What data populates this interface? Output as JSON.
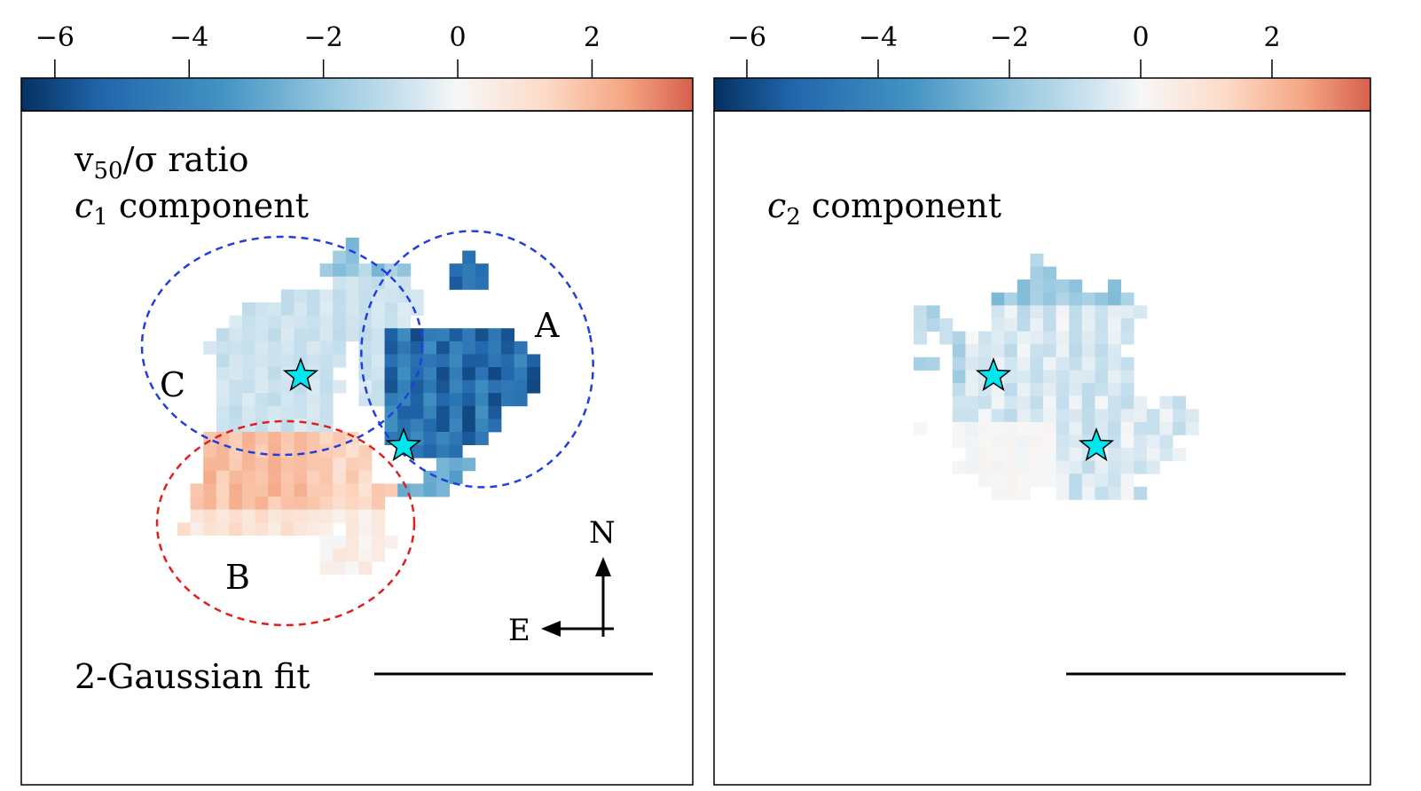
{
  "chart_data": [
    {
      "type": "heatmap",
      "panel": "left",
      "title_line1_main": "v",
      "title_line1_sub": "50",
      "title_line1_rest": "/σ ratio",
      "title_line2_main": "c",
      "title_line2_sub": "1",
      "title_line2_rest": " component",
      "fit_label": "2-Gaussian fit",
      "colorbar": {
        "cmap": "RdBu_r",
        "vmin": -6.5,
        "vmax": 3.5,
        "ticks": [
          -6,
          -4,
          -2,
          0,
          2
        ],
        "tick_labels": [
          "−6",
          "−4",
          "−2",
          "0",
          "2"
        ]
      },
      "regions": [
        {
          "label": "A",
          "color": "#1f3fe0"
        },
        {
          "label": "B",
          "color": "#e01f1f"
        },
        {
          "label": "C",
          "color": "#1f3fe0"
        }
      ],
      "markers": [
        {
          "name": "star-1",
          "color": "#00e5ee"
        },
        {
          "name": "star-2",
          "color": "#00e5ee"
        }
      ],
      "compass": {
        "north": "N",
        "east": "E"
      },
      "value_groups": [
        {
          "region": "C",
          "typical_value": -0.8
        },
        {
          "region": "A",
          "typical_value": -4.8
        },
        {
          "region": "B",
          "typical_value": 1.9
        }
      ]
    },
    {
      "type": "heatmap",
      "panel": "right",
      "title_line2_main": "c",
      "title_line2_sub": "2",
      "title_line2_rest": " component",
      "colorbar": {
        "cmap": "RdBu_r",
        "vmin": -6.5,
        "vmax": 3.5,
        "ticks": [
          -6,
          -4,
          -2,
          0,
          2
        ],
        "tick_labels": [
          "−6",
          "−4",
          "−2",
          "0",
          "2"
        ]
      },
      "markers": [
        {
          "name": "star-1",
          "color": "#00e5ee"
        },
        {
          "name": "star-2",
          "color": "#00e5ee"
        }
      ],
      "value_groups": [
        {
          "region": "main",
          "typical_value": -0.6
        }
      ]
    }
  ]
}
